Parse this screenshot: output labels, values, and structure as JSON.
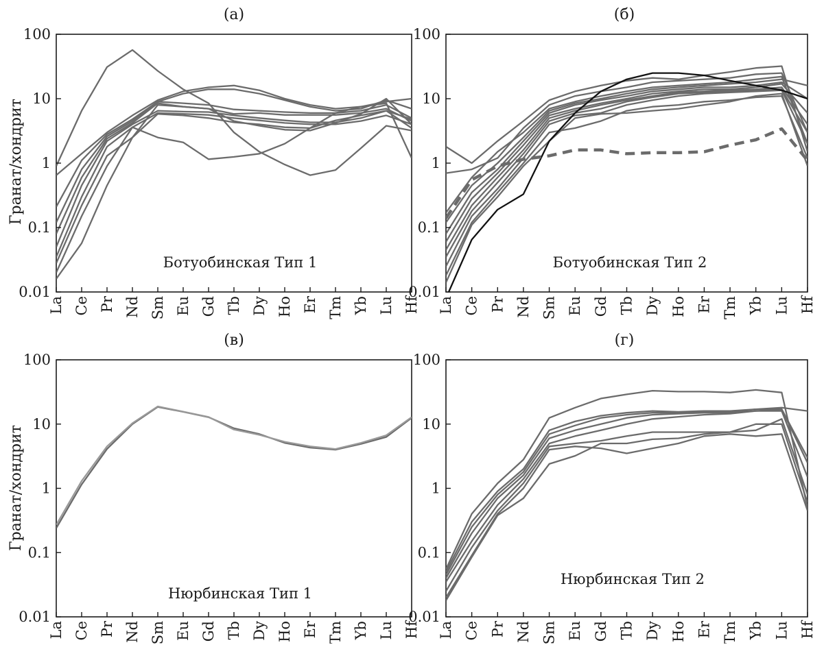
{
  "chart_data": [
    {
      "type": "line",
      "title": "(а)",
      "ylabel": "Гранат/хондрит",
      "annotation": "Ботуобинская Тип 1",
      "y_scale": "log",
      "ylim": [
        0.01,
        100
      ],
      "y_ticks": [
        "0.01",
        "0.1",
        "1",
        "10",
        "100"
      ],
      "categories": [
        "La",
        "Ce",
        "Pr",
        "Nd",
        "Sm",
        "Eu",
        "Gd",
        "Tb",
        "Dy",
        "Ho",
        "Er",
        "Tm",
        "Yb",
        "Lu",
        "Hf"
      ],
      "series": [
        {
          "color": "#6b6b6b",
          "values": [
            0.9,
            6.5,
            31,
            57,
            27,
            14,
            8.5,
            3,
            1.5,
            0.95,
            0.65,
            0.78,
            1.7,
            3.8,
            3.2
          ]
        },
        {
          "color": "#6b6b6b",
          "values": [
            0.65,
            1.4,
            3,
            5.5,
            9.5,
            13,
            15,
            16,
            13.5,
            10,
            8,
            7,
            7.5,
            9,
            10
          ]
        },
        {
          "color": "#6b6b6b",
          "values": [
            0.21,
            1.1,
            2.8,
            4.8,
            9,
            12,
            14,
            14,
            12,
            9.5,
            7.5,
            6.5,
            7,
            9.5,
            7
          ]
        },
        {
          "color": "#6b6b6b",
          "values": [
            0.12,
            0.8,
            2.6,
            4.5,
            9,
            8.5,
            8,
            6.8,
            6.5,
            6.2,
            6,
            6,
            6.5,
            8,
            5
          ]
        },
        {
          "color": "#6b6b6b",
          "values": [
            0.08,
            0.6,
            2.4,
            4.2,
            8.5,
            7.5,
            7,
            5.8,
            6,
            5.6,
            5.6,
            5.6,
            6,
            7,
            4.5
          ]
        },
        {
          "color": "#6b6b6b",
          "values": [
            0.05,
            0.45,
            2.2,
            4,
            6.5,
            6.3,
            6.2,
            5.5,
            5,
            4.6,
            4.3,
            4.3,
            5,
            6.5,
            4.8
          ]
        },
        {
          "color": "#6b6b6b",
          "values": [
            0.035,
            0.3,
            1.8,
            3.6,
            6,
            5.8,
            5.6,
            5,
            4.6,
            4.2,
            4,
            4,
            4.5,
            5.5,
            4
          ]
        },
        {
          "color": "#6b6b6b",
          "values": [
            0.028,
            0.22,
            1.3,
            2.5,
            5.8,
            5.5,
            5,
            4.3,
            4,
            3.6,
            3.5,
            4.6,
            5.5,
            6.5,
            3.5
          ]
        },
        {
          "color": "#6b6b6b",
          "values": [
            0.016,
            0.057,
            0.45,
            2.5,
            8,
            7.5,
            7,
            4.5,
            3.8,
            3.3,
            3.2,
            4.2,
            5.8,
            10,
            4
          ]
        },
        {
          "color": "#6b6b6b",
          "values": [
            0.02,
            0.15,
            0.9,
            3.6,
            2.5,
            2.1,
            1.15,
            1.25,
            1.4,
            2,
            3.5,
            6,
            7.5,
            8.5,
            1.2
          ]
        }
      ]
    },
    {
      "type": "line",
      "title": "(б)",
      "ylabel": "",
      "annotation": "Ботуобинская Тип 2",
      "y_scale": "log",
      "ylim": [
        0.01,
        100
      ],
      "y_ticks": [
        "0.01",
        "0.1",
        "1",
        "10",
        "100"
      ],
      "categories": [
        "La",
        "Ce",
        "Pr",
        "Nd",
        "Sm",
        "Eu",
        "Gd",
        "Tb",
        "Dy",
        "Ho",
        "Er",
        "Tm",
        "Yb",
        "Lu",
        "Hf"
      ],
      "series": [
        {
          "color": "#6b6b6b",
          "values": [
            1.8,
            1.0,
            2.2,
            4.5,
            9.5,
            13,
            16,
            19,
            21,
            20,
            23,
            26,
            30,
            32,
            1.5
          ]
        },
        {
          "color": "#6b6b6b",
          "values": [
            0.7,
            0.8,
            1.2,
            3.5,
            8,
            11,
            13,
            15,
            18,
            19,
            20,
            21,
            24,
            25,
            3
          ]
        },
        {
          "color": "#6b6b6b",
          "values": [
            0.17,
            0.6,
            1.5,
            3,
            7,
            9,
            11,
            13,
            15,
            16,
            17,
            18,
            20,
            22,
            2
          ]
        },
        {
          "color": "#6b6b6b",
          "values": [
            0.12,
            0.45,
            1,
            2.5,
            6.5,
            8.5,
            10,
            12,
            14,
            15,
            16,
            17,
            18,
            20,
            16
          ]
        },
        {
          "color": "#6b6b6b",
          "values": [
            0.08,
            0.35,
            0.8,
            2.2,
            6,
            8,
            9.5,
            11,
            13,
            14,
            15,
            15,
            16,
            18,
            10
          ]
        },
        {
          "color": "#6b6b6b",
          "values": [
            0.06,
            0.28,
            0.7,
            1.9,
            5.5,
            7,
            8.5,
            10,
            12,
            13,
            14,
            14,
            15,
            17,
            6
          ]
        },
        {
          "color": "#6b6b6b",
          "values": [
            0.045,
            0.22,
            0.6,
            1.6,
            5,
            6.5,
            8,
            9.5,
            11,
            12.5,
            13,
            13.5,
            14,
            15,
            4
          ]
        },
        {
          "color": "#6b6b6b",
          "values": [
            0.035,
            0.18,
            0.5,
            1.4,
            4.5,
            6,
            7,
            9,
            10.5,
            12,
            12.5,
            13,
            13.5,
            14,
            3
          ]
        },
        {
          "color": "#6b6b6b",
          "values": [
            0.025,
            0.15,
            0.4,
            1.2,
            4,
            5.5,
            6,
            8,
            9.5,
            11,
            12,
            12.5,
            13,
            13.5,
            2
          ]
        },
        {
          "color": "#6b6b6b",
          "values": [
            0.018,
            0.12,
            0.35,
            1,
            3,
            3.5,
            4.5,
            6.5,
            7.5,
            8,
            9,
            9.5,
            10.5,
            11,
            1.2
          ]
        },
        {
          "color": "#6b6b6b",
          "values": [
            0.014,
            0.11,
            0.3,
            0.9,
            2.2,
            5,
            5.8,
            6,
            6.5,
            7,
            8,
            9,
            11,
            12,
            0.9
          ]
        },
        {
          "color": "#111111",
          "values": [
            0.008,
            0.065,
            0.19,
            0.33,
            2.2,
            6,
            13,
            20,
            25,
            25,
            23,
            19,
            16,
            13.5,
            10
          ]
        },
        {
          "color": "#6b6b6b",
          "dashed": true,
          "values": [
            0.14,
            0.55,
            0.9,
            1.15,
            1.3,
            1.6,
            1.6,
            1.4,
            1.45,
            1.45,
            1.5,
            1.9,
            2.3,
            3.4,
            1.1
          ]
        }
      ]
    },
    {
      "type": "line",
      "title": "(в)",
      "ylabel": "Гранат/хондрит",
      "annotation": "Нюрбинская  Тип 1",
      "y_scale": "log",
      "ylim": [
        0.01,
        100
      ],
      "y_ticks": [
        "0.01",
        "0.1",
        "1",
        "10",
        "100"
      ],
      "categories": [
        "La",
        "Ce",
        "Pr",
        "Nd",
        "Sm",
        "Eu",
        "Gd",
        "Tb",
        "Dy",
        "Ho",
        "Er",
        "Tm",
        "Yb",
        "Lu",
        "Hf"
      ],
      "series": [
        {
          "color": "#6b6b6b",
          "values": [
            0.24,
            1.15,
            4.1,
            10,
            18.5,
            15.5,
            12.8,
            8.6,
            7,
            5.1,
            4.3,
            4.0,
            4.9,
            6.3,
            12.5
          ]
        },
        {
          "color": "#999999",
          "values": [
            0.27,
            1.3,
            4.5,
            10.3,
            18.8,
            15.6,
            12.9,
            8.2,
            6.8,
            5.3,
            4.5,
            4.1,
            5.1,
            6.7,
            12.8
          ]
        }
      ]
    },
    {
      "type": "line",
      "title": "(г)",
      "ylabel": "",
      "annotation": "Нюрбинская  Тип 2",
      "y_scale": "log",
      "ylim": [
        0.01,
        100
      ],
      "y_ticks": [
        "0.01",
        "0.1",
        "1",
        "10",
        "100"
      ],
      "categories": [
        "La",
        "Ce",
        "Pr",
        "Nd",
        "Sm",
        "Eu",
        "Gd",
        "Tb",
        "Dy",
        "Ho",
        "Er",
        "Tm",
        "Yb",
        "Lu",
        "Hf"
      ],
      "series": [
        {
          "color": "#6b6b6b",
          "values": [
            0.055,
            0.4,
            1.2,
            2.8,
            12.5,
            18,
            25,
            29,
            33,
            32,
            32,
            31,
            34,
            31,
            0.5
          ]
        },
        {
          "color": "#6b6b6b",
          "values": [
            0.05,
            0.3,
            0.9,
            2,
            8,
            11,
            13.5,
            15,
            16,
            15.5,
            16,
            16,
            17,
            18,
            16
          ]
        },
        {
          "color": "#6b6b6b",
          "values": [
            0.045,
            0.25,
            0.8,
            1.8,
            7,
            9.5,
            12.5,
            14,
            15,
            15,
            15.5,
            15.5,
            17,
            17,
            2.5
          ]
        },
        {
          "color": "#6b6b6b",
          "values": [
            0.04,
            0.2,
            0.7,
            1.6,
            6,
            8,
            10,
            12.5,
            14,
            14.5,
            15,
            15,
            16,
            17,
            3
          ]
        },
        {
          "color": "#6b6b6b",
          "values": [
            0.035,
            0.15,
            0.55,
            1.4,
            5,
            6.5,
            8,
            10,
            12,
            13,
            14,
            14.5,
            16,
            16,
            1.5
          ]
        },
        {
          "color": "#6b6b6b",
          "values": [
            0.025,
            0.12,
            0.45,
            1.2,
            4.5,
            5,
            5.5,
            6.5,
            7.5,
            7.5,
            7.5,
            7.5,
            8,
            12,
            0.8
          ]
        },
        {
          "color": "#6b6b6b",
          "values": [
            0.02,
            0.09,
            0.4,
            1,
            4,
            4.5,
            4.2,
            3.5,
            4.2,
            5,
            6.5,
            7,
            6.5,
            7,
            0.45
          ]
        },
        {
          "color": "#6b6b6b",
          "values": [
            0.018,
            0.085,
            0.38,
            0.7,
            2.4,
            3.2,
            5,
            5,
            5.8,
            6,
            7,
            7.5,
            10,
            10,
            0.6
          ]
        }
      ]
    }
  ]
}
